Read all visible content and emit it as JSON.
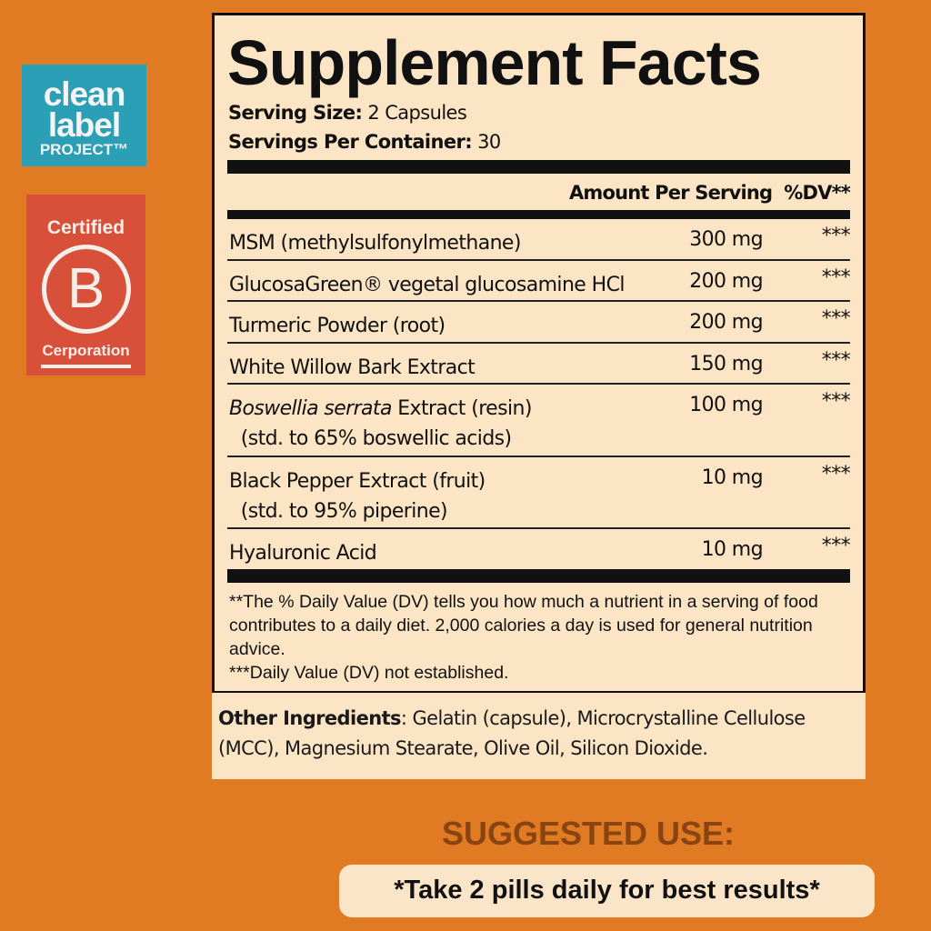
{
  "logos": {
    "clean_label": {
      "line1": "clean label",
      "line2": "PROJECT™"
    },
    "bcorp": {
      "top": "Certified",
      "letter": "B",
      "bottom": "Cerporation"
    }
  },
  "facts": {
    "title": "Supplement Facts",
    "serving_size_label": "Serving Size:",
    "serving_size": "2 Capsules",
    "servings_label": "Servings Per Container:",
    "servings": "30",
    "amount_header": "Amount Per Serving",
    "dv_header": "%DV**",
    "ingredients": [
      {
        "name": "MSM (methylsulfonylmethane)",
        "amount": "300 mg",
        "dv": "***"
      },
      {
        "name": "GlucosaGreen® vegetal glucosamine HCl",
        "amount": "200 mg",
        "dv": "***"
      },
      {
        "name": "Turmeric Powder (root)",
        "amount": "200 mg",
        "dv": "***"
      },
      {
        "name": "White Willow Bark Extract",
        "amount": "150 mg",
        "dv": "***"
      },
      {
        "name_italic": "Boswellia serrata",
        "name": " Extract (resin)",
        "sub": "(std. to 65% boswellic acids)",
        "amount": "100 mg",
        "dv": "***"
      },
      {
        "name": "Black Pepper Extract (fruit)",
        "sub": "(std. to 95% piperine)",
        "amount": "10 mg",
        "dv": "***"
      },
      {
        "name": "Hyaluronic Acid",
        "amount": "10 mg",
        "dv": "***"
      }
    ],
    "footnote1": "**The % Daily Value (DV) tells you how much a nutrient in a serving of food contributes to a daily diet. 2,000 calories a day is used for general nutrition advice.",
    "footnote2": "***Daily Value (DV) not established."
  },
  "other": {
    "label": "Other Ingredients",
    "text": ": Gelatin (capsule), Microcrystalline Cellulose (MCC), Magnesium Stearate, Olive Oil, Silicon Dioxide."
  },
  "suggested_use": {
    "heading": "SUGGESTED USE:",
    "text": "*Take 2 pills daily for best results*"
  },
  "colors": {
    "background": "#e07b24",
    "panel": "#fbe5c5",
    "teal": "#2b9fb6",
    "red": "#d8503a",
    "heading_brown": "#8a4411"
  }
}
